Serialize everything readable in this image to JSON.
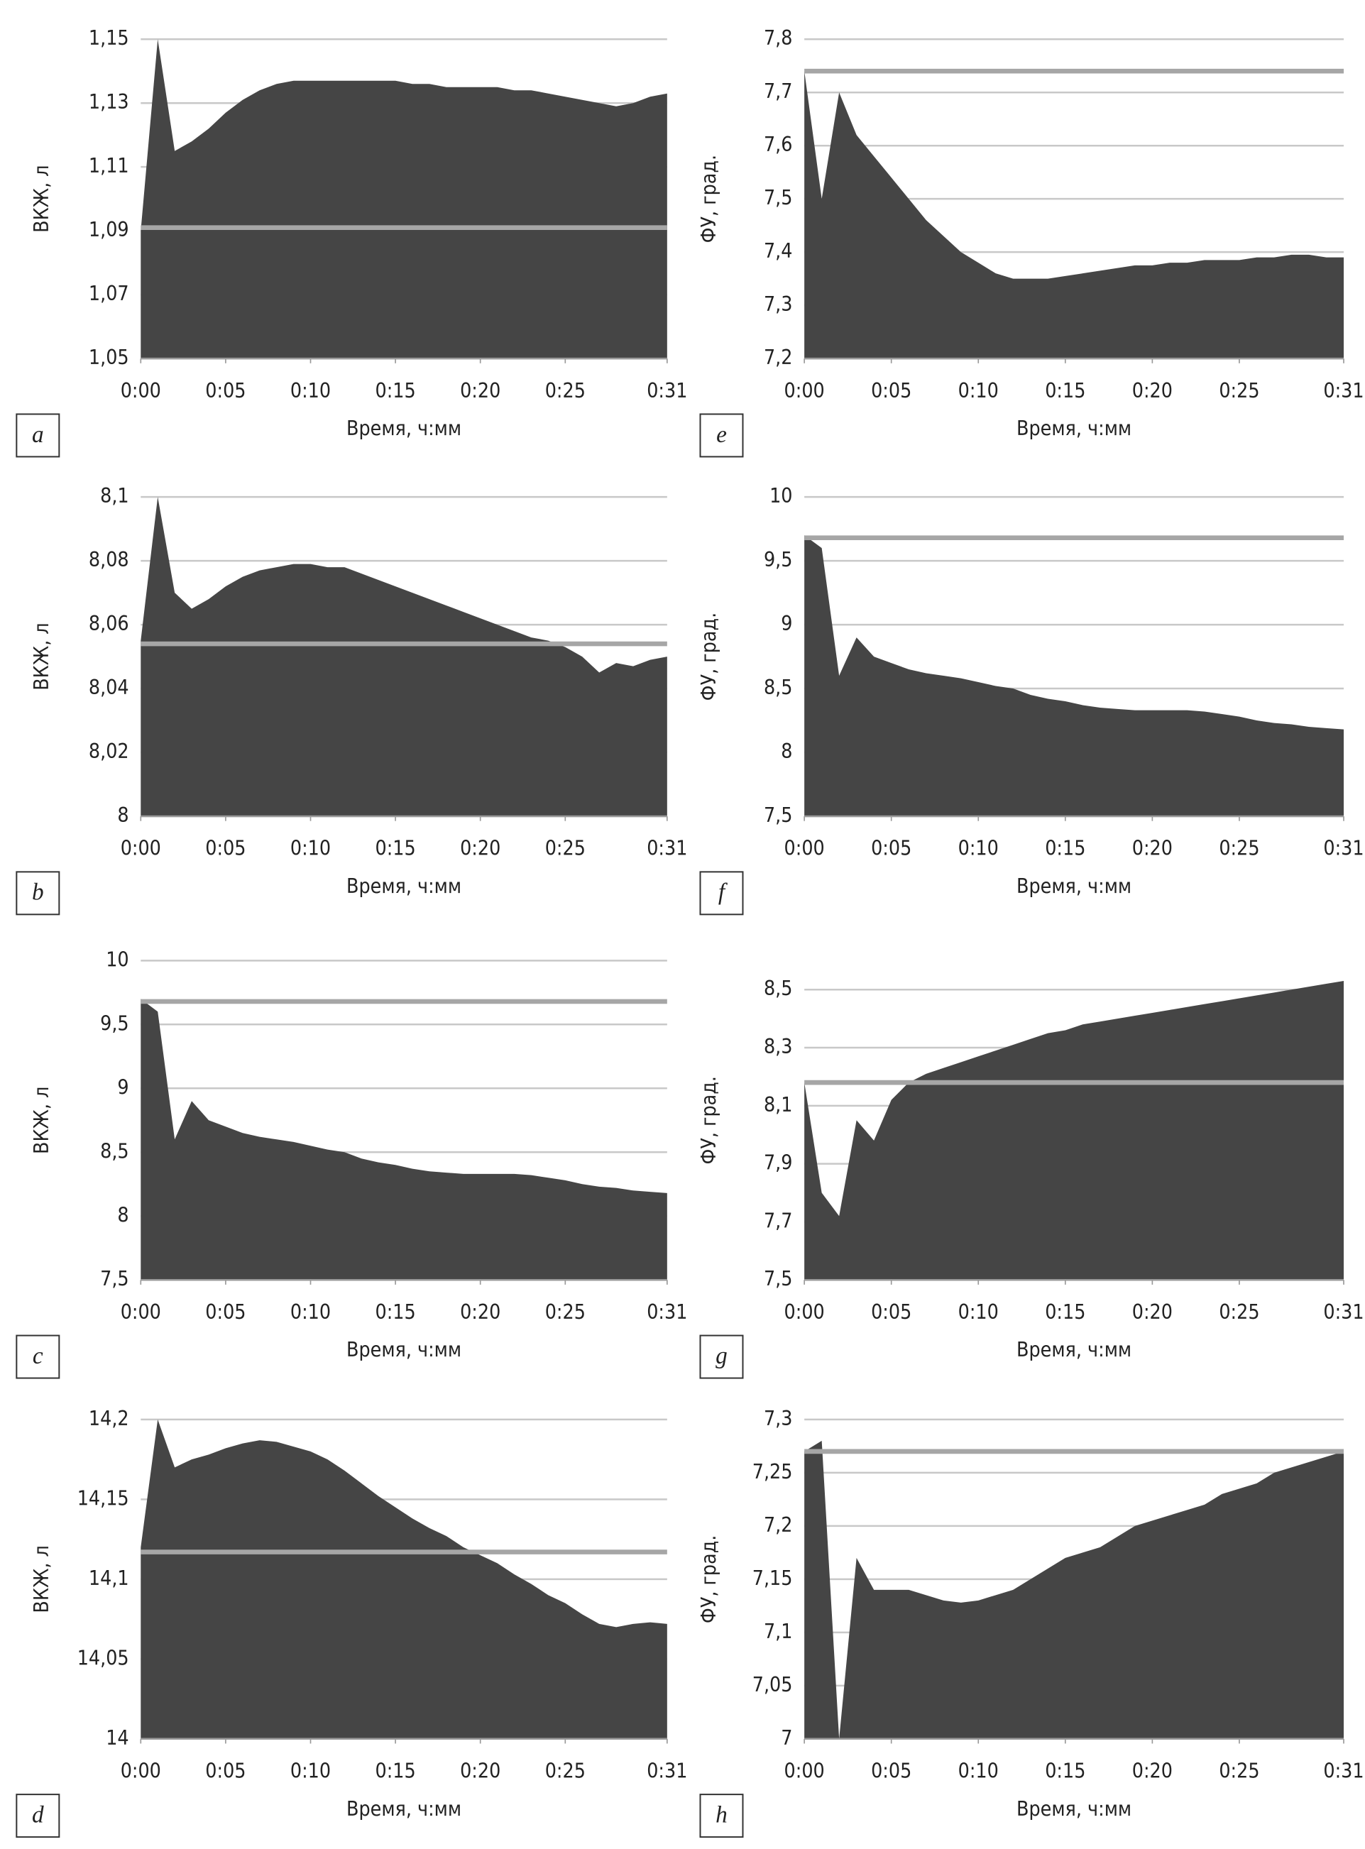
{
  "chart_data": [
    {
      "type": "area",
      "panel_label": "a",
      "y_label": "ВКЖ, л",
      "x_label": "Время, ч:мм",
      "color": "#454545",
      "reference_color": "#a6a6a6",
      "grid": true,
      "reference_line": 1.091,
      "x": [
        0,
        1,
        2,
        3,
        4,
        5,
        6,
        7,
        8,
        9,
        10,
        11,
        12,
        13,
        14,
        15,
        16,
        17,
        18,
        19,
        20,
        21,
        22,
        23,
        24,
        25,
        26,
        27,
        28,
        29,
        30,
        31
      ],
      "values": [
        1.09,
        1.15,
        1.115,
        1.118,
        1.122,
        1.127,
        1.131,
        1.134,
        1.136,
        1.137,
        1.137,
        1.137,
        1.137,
        1.137,
        1.137,
        1.137,
        1.136,
        1.136,
        1.135,
        1.135,
        1.135,
        1.135,
        1.134,
        1.134,
        1.133,
        1.132,
        1.131,
        1.13,
        1.129,
        1.13,
        1.132,
        1.133
      ],
      "xlim": [
        0,
        31
      ],
      "xticks": [
        {
          "value": 0,
          "label": "0:00"
        },
        {
          "value": 5,
          "label": "0:05"
        },
        {
          "value": 10,
          "label": "0:10"
        },
        {
          "value": 15,
          "label": "0:15"
        },
        {
          "value": 20,
          "label": "0:20"
        },
        {
          "value": 25,
          "label": "0:25"
        },
        {
          "value": 31,
          "label": "0:31"
        }
      ],
      "ylim": [
        1.05,
        1.15
      ],
      "yticks": [
        {
          "value": 1.05,
          "label": "1,05"
        },
        {
          "value": 1.07,
          "label": "1,07"
        },
        {
          "value": 1.09,
          "label": "1,09"
        },
        {
          "value": 1.11,
          "label": "1,11"
        },
        {
          "value": 1.13,
          "label": "1,13"
        },
        {
          "value": 1.15,
          "label": "1,15"
        }
      ]
    },
    {
      "type": "area",
      "panel_label": "b",
      "y_label": "ВКЖ, л",
      "x_label": "Время, ч:мм",
      "color": "#454545",
      "reference_color": "#a6a6a6",
      "grid": true,
      "reference_line": 8.054,
      "x": [
        0,
        1,
        2,
        3,
        4,
        5,
        6,
        7,
        8,
        9,
        10,
        11,
        12,
        13,
        14,
        15,
        16,
        17,
        18,
        19,
        20,
        21,
        22,
        23,
        24,
        25,
        26,
        27,
        28,
        29,
        30,
        31
      ],
      "values": [
        8.055,
        8.1,
        8.07,
        8.065,
        8.068,
        8.072,
        8.075,
        8.077,
        8.078,
        8.079,
        8.079,
        8.078,
        8.078,
        8.076,
        8.074,
        8.072,
        8.07,
        8.068,
        8.066,
        8.064,
        8.062,
        8.06,
        8.058,
        8.056,
        8.055,
        8.053,
        8.05,
        8.045,
        8.048,
        8.047,
        8.049,
        8.05
      ],
      "xlim": [
        0,
        31
      ],
      "xticks": [
        {
          "value": 0,
          "label": "0:00"
        },
        {
          "value": 5,
          "label": "0:05"
        },
        {
          "value": 10,
          "label": "0:10"
        },
        {
          "value": 15,
          "label": "0:15"
        },
        {
          "value": 20,
          "label": "0:20"
        },
        {
          "value": 25,
          "label": "0:25"
        },
        {
          "value": 31,
          "label": "0:31"
        }
      ],
      "ylim": [
        8,
        8.1
      ],
      "yticks": [
        8,
        {
          "value": 8.02,
          "label": "8,02"
        },
        {
          "value": 8.04,
          "label": "8,04"
        },
        {
          "value": 8.06,
          "label": "8,06"
        },
        {
          "value": 8.08,
          "label": "8,08"
        },
        {
          "value": 8.1,
          "label": "8,1"
        }
      ]
    },
    {
      "type": "area",
      "panel_label": "c",
      "y_label": "ВКЖ, л",
      "x_label": "Время, ч:мм",
      "color": "#454545",
      "reference_color": "#a6a6a6",
      "grid": true,
      "reference_line": 9.68,
      "x": [
        0,
        1,
        2,
        3,
        4,
        5,
        6,
        7,
        8,
        9,
        10,
        11,
        12,
        13,
        14,
        15,
        16,
        17,
        18,
        19,
        20,
        21,
        22,
        23,
        24,
        25,
        26,
        27,
        28,
        29,
        30,
        31
      ],
      "values": [
        9.7,
        9.6,
        8.6,
        8.9,
        8.75,
        8.7,
        8.65,
        8.62,
        8.6,
        8.58,
        8.55,
        8.52,
        8.5,
        8.45,
        8.42,
        8.4,
        8.37,
        8.35,
        8.34,
        8.33,
        8.33,
        8.33,
        8.33,
        8.32,
        8.3,
        8.28,
        8.25,
        8.23,
        8.22,
        8.2,
        8.19,
        8.18
      ],
      "xlim": [
        0,
        31
      ],
      "xticks": [
        {
          "value": 0,
          "label": "0:00"
        },
        {
          "value": 5,
          "label": "0:05"
        },
        {
          "value": 10,
          "label": "0:10"
        },
        {
          "value": 15,
          "label": "0:15"
        },
        {
          "value": 20,
          "label": "0:20"
        },
        {
          "value": 25,
          "label": "0:25"
        },
        {
          "value": 31,
          "label": "0:31"
        }
      ],
      "ylim": [
        7.5,
        10
      ],
      "yticks": [
        {
          "value": 7.5,
          "label": "7,5"
        },
        8,
        {
          "value": 8.5,
          "label": "8,5"
        },
        9,
        {
          "value": 9.5,
          "label": "9,5"
        },
        10
      ]
    },
    {
      "type": "area",
      "panel_label": "d",
      "y_label": "ВКЖ, л",
      "x_label": "Время, ч:мм",
      "color": "#454545",
      "reference_color": "#a6a6a6",
      "grid": true,
      "reference_line": 14.117,
      "x": [
        0,
        1,
        2,
        3,
        4,
        5,
        6,
        7,
        8,
        9,
        10,
        11,
        12,
        13,
        14,
        15,
        16,
        17,
        18,
        19,
        20,
        21,
        22,
        23,
        24,
        25,
        26,
        27,
        28,
        29,
        30,
        31
      ],
      "values": [
        14.12,
        14.2,
        14.17,
        14.175,
        14.178,
        14.182,
        14.185,
        14.187,
        14.186,
        14.183,
        14.18,
        14.175,
        14.168,
        14.16,
        14.152,
        14.145,
        14.138,
        14.132,
        14.127,
        14.12,
        14.115,
        14.11,
        14.103,
        14.097,
        14.09,
        14.085,
        14.078,
        14.072,
        14.07,
        14.072,
        14.073,
        14.072
      ],
      "xlim": [
        0,
        31
      ],
      "xticks": [
        {
          "value": 0,
          "label": "0:00"
        },
        {
          "value": 5,
          "label": "0:05"
        },
        {
          "value": 10,
          "label": "0:10"
        },
        {
          "value": 15,
          "label": "0:15"
        },
        {
          "value": 20,
          "label": "0:20"
        },
        {
          "value": 25,
          "label": "0:25"
        },
        {
          "value": 31,
          "label": "0:31"
        }
      ],
      "ylim": [
        14,
        14.2
      ],
      "yticks": [
        14,
        {
          "value": 14.05,
          "label": "14,05"
        },
        {
          "value": 14.1,
          "label": "14,1"
        },
        {
          "value": 14.15,
          "label": "14,15"
        },
        {
          "value": 14.2,
          "label": "14,2"
        }
      ]
    },
    {
      "type": "area",
      "panel_label": "e",
      "y_label": "ФУ, град.",
      "x_label": "Время, ч:мм",
      "color": "#454545",
      "reference_color": "#a6a6a6",
      "grid": true,
      "reference_line": 7.74,
      "x": [
        0,
        1,
        2,
        3,
        4,
        5,
        6,
        7,
        8,
        9,
        10,
        11,
        12,
        13,
        14,
        15,
        16,
        17,
        18,
        19,
        20,
        21,
        22,
        23,
        24,
        25,
        26,
        27,
        28,
        29,
        30,
        31
      ],
      "values": [
        7.74,
        7.5,
        7.7,
        7.62,
        7.58,
        7.54,
        7.5,
        7.46,
        7.43,
        7.4,
        7.38,
        7.36,
        7.35,
        7.35,
        7.35,
        7.355,
        7.36,
        7.365,
        7.37,
        7.375,
        7.375,
        7.38,
        7.38,
        7.385,
        7.385,
        7.385,
        7.39,
        7.39,
        7.395,
        7.395,
        7.39,
        7.39
      ],
      "xlim": [
        0,
        31
      ],
      "xticks": [
        {
          "value": 0,
          "label": "0:00"
        },
        {
          "value": 5,
          "label": "0:05"
        },
        {
          "value": 10,
          "label": "0:10"
        },
        {
          "value": 15,
          "label": "0:15"
        },
        {
          "value": 20,
          "label": "0:20"
        },
        {
          "value": 25,
          "label": "0:25"
        },
        {
          "value": 31,
          "label": "0:31"
        }
      ],
      "ylim": [
        7.2,
        7.8
      ],
      "yticks": [
        {
          "value": 7.2,
          "label": "7,2"
        },
        {
          "value": 7.3,
          "label": "7,3"
        },
        {
          "value": 7.4,
          "label": "7,4"
        },
        {
          "value": 7.5,
          "label": "7,5"
        },
        {
          "value": 7.6,
          "label": "7,6"
        },
        {
          "value": 7.7,
          "label": "7,7"
        },
        {
          "value": 7.8,
          "label": "7,8"
        }
      ]
    },
    {
      "type": "area",
      "panel_label": "f",
      "y_label": "ФУ, град.",
      "x_label": "Время, ч:мм",
      "color": "#454545",
      "reference_color": "#a6a6a6",
      "grid": true,
      "reference_line": 9.68,
      "x": [
        0,
        1,
        2,
        3,
        4,
        5,
        6,
        7,
        8,
        9,
        10,
        11,
        12,
        13,
        14,
        15,
        16,
        17,
        18,
        19,
        20,
        21,
        22,
        23,
        24,
        25,
        26,
        27,
        28,
        29,
        30,
        31
      ],
      "values": [
        9.7,
        9.6,
        8.6,
        8.9,
        8.75,
        8.7,
        8.65,
        8.62,
        8.6,
        8.58,
        8.55,
        8.52,
        8.5,
        8.45,
        8.42,
        8.4,
        8.37,
        8.35,
        8.34,
        8.33,
        8.33,
        8.33,
        8.33,
        8.32,
        8.3,
        8.28,
        8.25,
        8.23,
        8.22,
        8.2,
        8.19,
        8.18
      ],
      "xlim": [
        0,
        31
      ],
      "xticks": [
        {
          "value": 0,
          "label": "0:00"
        },
        {
          "value": 5,
          "label": "0:05"
        },
        {
          "value": 10,
          "label": "0:10"
        },
        {
          "value": 15,
          "label": "0:15"
        },
        {
          "value": 20,
          "label": "0:20"
        },
        {
          "value": 25,
          "label": "0:25"
        },
        {
          "value": 31,
          "label": "0:31"
        }
      ],
      "ylim": [
        7.5,
        10
      ],
      "yticks": [
        {
          "value": 7.5,
          "label": "7,5"
        },
        8,
        {
          "value": 8.5,
          "label": "8,5"
        },
        9,
        {
          "value": 9.5,
          "label": "9,5"
        },
        10
      ]
    },
    {
      "type": "area",
      "panel_label": "g",
      "y_label": "ФУ, град.",
      "x_label": "Время, ч:мм",
      "color": "#454545",
      "reference_color": "#a6a6a6",
      "grid": true,
      "reference_line": 8.18,
      "x": [
        0,
        1,
        2,
        3,
        4,
        5,
        6,
        7,
        8,
        9,
        10,
        11,
        12,
        13,
        14,
        15,
        16,
        17,
        18,
        19,
        20,
        21,
        22,
        23,
        24,
        25,
        26,
        27,
        28,
        29,
        30,
        31
      ],
      "values": [
        8.18,
        7.8,
        7.72,
        8.05,
        7.98,
        8.12,
        8.18,
        8.21,
        8.23,
        8.25,
        8.27,
        8.29,
        8.31,
        8.33,
        8.35,
        8.36,
        8.38,
        8.39,
        8.4,
        8.41,
        8.42,
        8.43,
        8.44,
        8.45,
        8.46,
        8.47,
        8.48,
        8.49,
        8.5,
        8.51,
        8.52,
        8.53
      ],
      "xlim": [
        0,
        31
      ],
      "xticks": [
        {
          "value": 0,
          "label": "0:00"
        },
        {
          "value": 5,
          "label": "0:05"
        },
        {
          "value": 10,
          "label": "0:10"
        },
        {
          "value": 15,
          "label": "0:15"
        },
        {
          "value": 20,
          "label": "0:20"
        },
        {
          "value": 25,
          "label": "0:25"
        },
        {
          "value": 31,
          "label": "0:31"
        }
      ],
      "ylim": [
        7.5,
        8.6
      ],
      "yticks": [
        {
          "value": 7.5,
          "label": "7,5"
        },
        {
          "value": 7.7,
          "label": "7,7"
        },
        {
          "value": 7.9,
          "label": "7,9"
        },
        {
          "value": 8.1,
          "label": "8,1"
        },
        {
          "value": 8.3,
          "label": "8,3"
        },
        {
          "value": 8.5,
          "label": "8,5"
        }
      ]
    },
    {
      "type": "area",
      "panel_label": "h",
      "y_label": "ФУ, град.",
      "x_label": "Время, ч:мм",
      "color": "#454545",
      "reference_color": "#a6a6a6",
      "grid": true,
      "reference_line": 7.27,
      "x": [
        0,
        1,
        2,
        3,
        4,
        5,
        6,
        7,
        8,
        9,
        10,
        11,
        12,
        13,
        14,
        15,
        16,
        17,
        18,
        19,
        20,
        21,
        22,
        23,
        24,
        25,
        26,
        27,
        28,
        29,
        30,
        31
      ],
      "values": [
        7.27,
        7.28,
        7.0,
        7.17,
        7.14,
        7.14,
        7.14,
        7.135,
        7.13,
        7.128,
        7.13,
        7.135,
        7.14,
        7.15,
        7.16,
        7.17,
        7.175,
        7.18,
        7.19,
        7.2,
        7.205,
        7.21,
        7.215,
        7.22,
        7.23,
        7.235,
        7.24,
        7.25,
        7.255,
        7.26,
        7.265,
        7.27
      ],
      "xlim": [
        0,
        31
      ],
      "xticks": [
        {
          "value": 0,
          "label": "0:00"
        },
        {
          "value": 5,
          "label": "0:05"
        },
        {
          "value": 10,
          "label": "0:10"
        },
        {
          "value": 15,
          "label": "0:15"
        },
        {
          "value": 20,
          "label": "0:20"
        },
        {
          "value": 25,
          "label": "0:25"
        },
        {
          "value": 31,
          "label": "0:31"
        }
      ],
      "ylim": [
        7,
        7.3
      ],
      "yticks": [
        7,
        {
          "value": 7.05,
          "label": "7,05"
        },
        {
          "value": 7.1,
          "label": "7,1"
        },
        {
          "value": 7.15,
          "label": "7,15"
        },
        {
          "value": 7.2,
          "label": "7,2"
        },
        {
          "value": 7.25,
          "label": "7,25"
        },
        {
          "value": 7.3,
          "label": "7,3"
        }
      ]
    }
  ]
}
